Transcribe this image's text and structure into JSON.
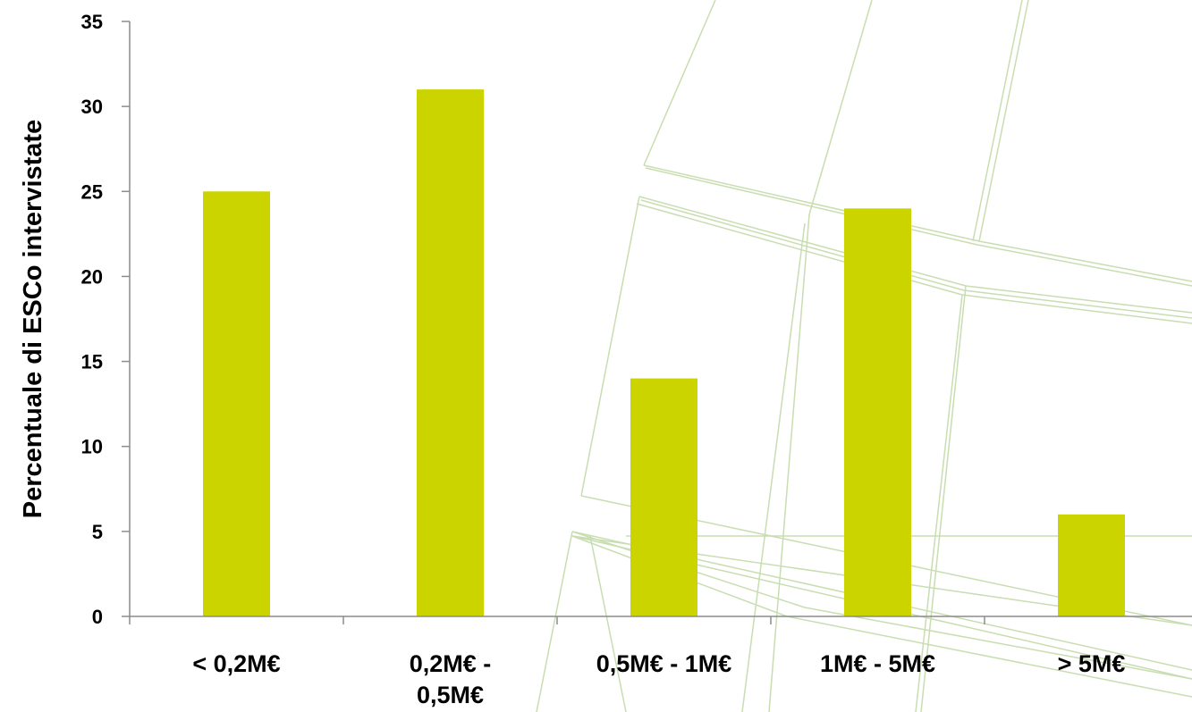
{
  "chart_data": {
    "type": "bar",
    "title": "",
    "xlabel": "",
    "ylabel": "Percentuale di ESCo intervistate",
    "categories": [
      [
        "< 0,2M€"
      ],
      [
        "0,2M€ -",
        "0,5M€"
      ],
      [
        "0,5M€ - 1M€"
      ],
      [
        "1M€ - 5M€"
      ],
      [
        "> 5M€"
      ]
    ],
    "values": [
      25,
      31,
      14,
      24,
      6
    ],
    "ylim": [
      0,
      35
    ],
    "yticks": [
      0,
      5,
      10,
      15,
      20,
      25,
      30,
      35
    ],
    "grid": false,
    "legend": "none",
    "bar_color": "#ccd400",
    "axis_color": "#8c8c8c",
    "decoration_color": "#c8ddb0"
  }
}
